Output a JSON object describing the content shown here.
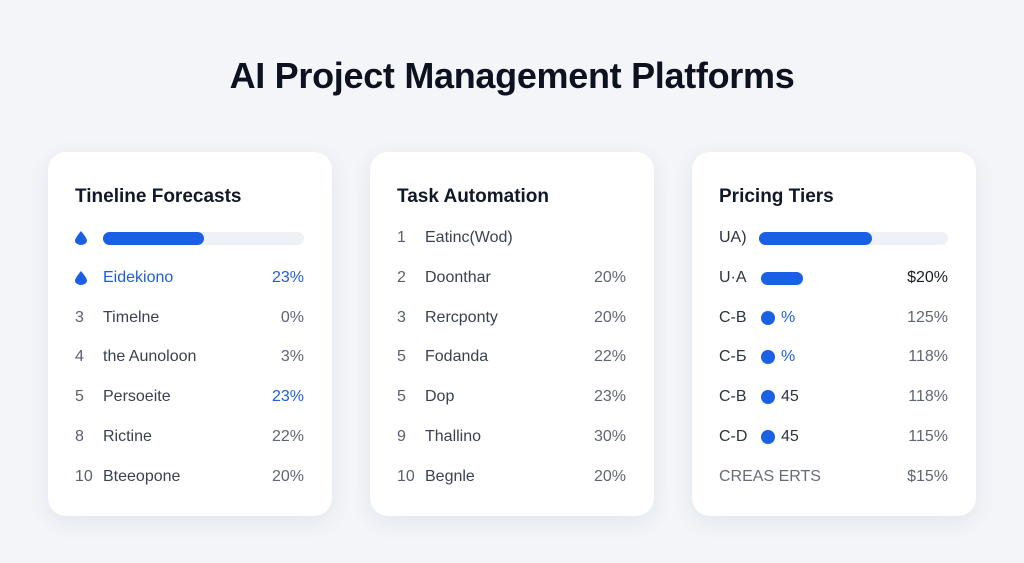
{
  "title": "AI Project Management Platforms",
  "colors": {
    "accent": "#1a5fe4",
    "accent_text": "#1f5fd6",
    "track": "#eef1f6"
  },
  "timeline": {
    "title": "Tineline Forecasts",
    "progress": 0.5,
    "rows": [
      {
        "num": "",
        "icon": "drop-icon",
        "name": "Eidekiono",
        "value": "23%",
        "highlight": true
      },
      {
        "num": "3",
        "name": "Timelne",
        "value": "0%"
      },
      {
        "num": "4",
        "name": "the Aunoloon",
        "value": "3%"
      },
      {
        "num": "5",
        "name": "Persoeite",
        "value": "23%",
        "value_highlight": true
      },
      {
        "num": "8",
        "name": "Rictine",
        "value": "22%"
      },
      {
        "num": "10",
        "name": "Bteeopone",
        "value": "20%"
      }
    ]
  },
  "automation": {
    "title": "Task Automation",
    "rows": [
      {
        "num": "1",
        "name": "Eatinc(Wod)",
        "value": ""
      },
      {
        "num": "2",
        "name": "Doonthar",
        "value": "20%"
      },
      {
        "num": "3",
        "name": "Rercponty",
        "value": "20%"
      },
      {
        "num": "5",
        "name": "Fodanda",
        "value": "22%"
      },
      {
        "num": "5",
        "name": "Dop",
        "value": "23%"
      },
      {
        "num": "9",
        "name": "Thallino",
        "value": "30%"
      },
      {
        "num": "10",
        "name": "Begnle",
        "value": "20%"
      }
    ]
  },
  "pricing": {
    "title": "Pricing Tiers",
    "header_label": "UA)",
    "header_progress": 0.6,
    "rows": [
      {
        "label": "U·A",
        "marker": "pill",
        "marker_text": "",
        "value": "$20%"
      },
      {
        "label": "C-B",
        "marker": "dot",
        "marker_text": "%",
        "value": "125%"
      },
      {
        "label": "C-Ƃ",
        "marker": "dot",
        "marker_text": "%",
        "value": "118%"
      },
      {
        "label": "C-B",
        "marker": "dot",
        "marker_text": "45",
        "value": "118%"
      },
      {
        "label": "C-D",
        "marker": "dot",
        "marker_text": "45",
        "value": "115%"
      },
      {
        "label": "CREAS ERTS",
        "marker": "",
        "marker_text": "",
        "value": "$15%"
      }
    ]
  }
}
